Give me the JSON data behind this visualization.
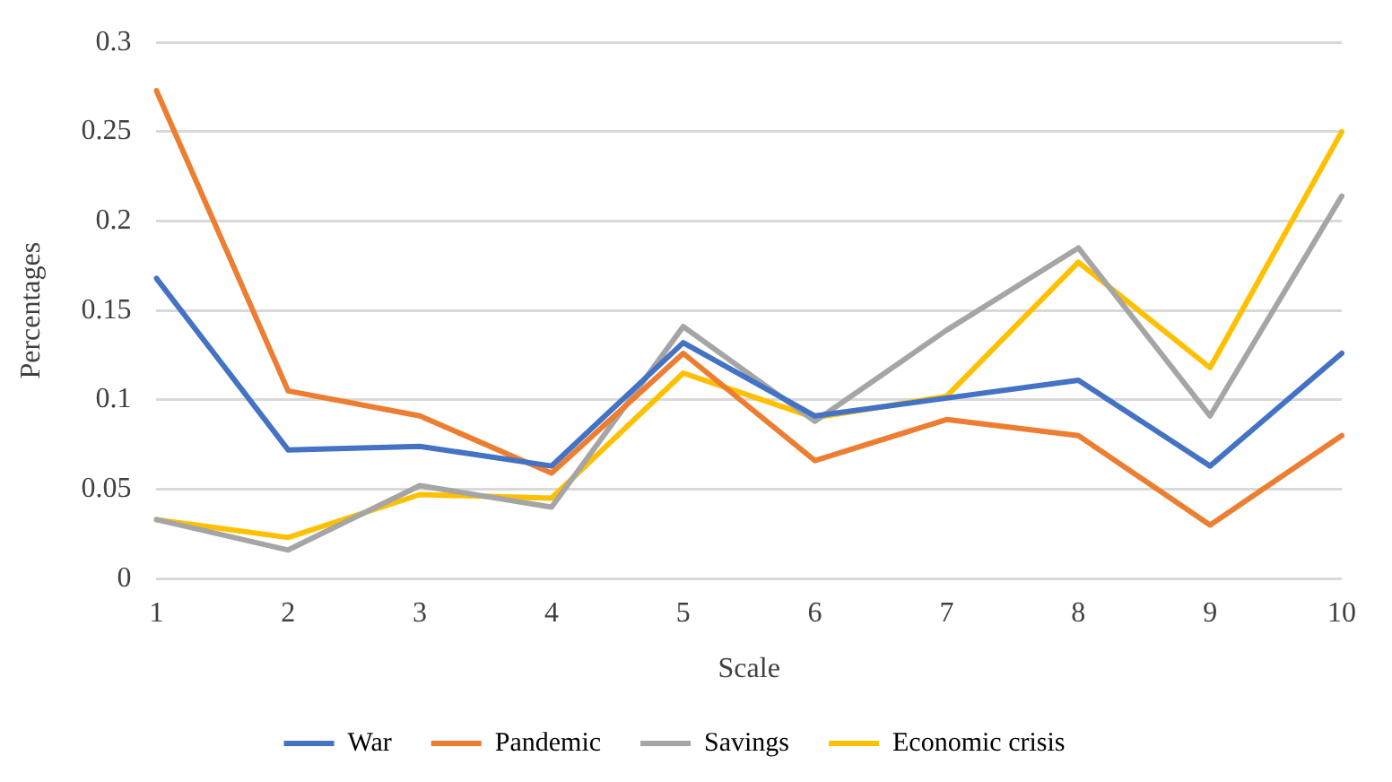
{
  "chart_data": {
    "type": "line",
    "xlabel": "Scale",
    "ylabel": "Percentages",
    "categories": [
      "1",
      "2",
      "3",
      "4",
      "5",
      "6",
      "7",
      "8",
      "9",
      "10"
    ],
    "series": [
      {
        "name": "War",
        "color": "#4472c4",
        "values": [
          0.168,
          0.072,
          0.074,
          0.063,
          0.132,
          0.091,
          0.101,
          0.111,
          0.063,
          0.126
        ]
      },
      {
        "name": "Pandemic",
        "color": "#ed7d31",
        "values": [
          0.273,
          0.105,
          0.091,
          0.059,
          0.126,
          0.066,
          0.089,
          0.08,
          0.03,
          0.08
        ]
      },
      {
        "name": "Savings",
        "color": "#a5a5a5",
        "values": [
          0.033,
          0.016,
          0.052,
          0.04,
          0.141,
          0.088,
          0.139,
          0.185,
          0.091,
          0.214
        ]
      },
      {
        "name": "Economic crisis",
        "color": "#ffc000",
        "values": [
          0.033,
          0.023,
          0.047,
          0.045,
          0.115,
          0.09,
          0.102,
          0.177,
          0.118,
          0.25
        ]
      }
    ],
    "ylim": [
      0,
      0.3
    ],
    "yticks": [
      0,
      0.05,
      0.1,
      0.15,
      0.2,
      0.25,
      0.3
    ],
    "grid": "y",
    "legend": "bottom",
    "marker": "none",
    "line_style": "solid"
  }
}
